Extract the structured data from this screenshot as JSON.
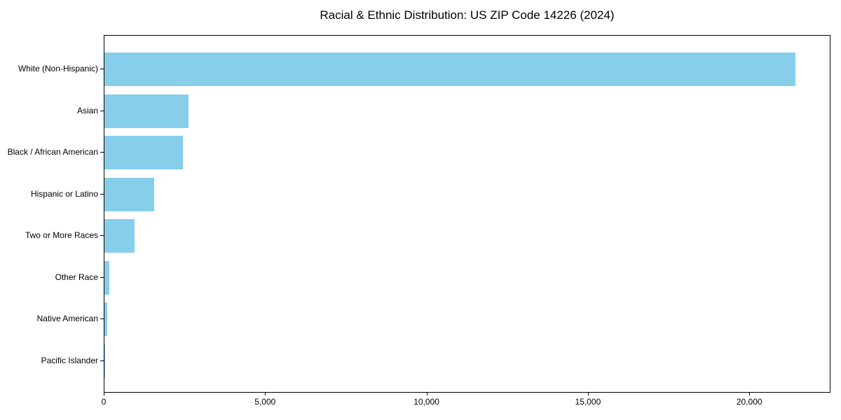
{
  "chart_data": {
    "type": "bar",
    "orientation": "horizontal",
    "title": "Racial & Ethnic Distribution: US ZIP Code 14226 (2024)",
    "categories": [
      "White (Non-Hispanic)",
      "Asian",
      "Black / African American",
      "Hispanic or Latino",
      "Two or More Races",
      "Other Race",
      "Native American",
      "Pacific Islander"
    ],
    "values": [
      21400,
      2600,
      2440,
      1545,
      925,
      150,
      85,
      10
    ],
    "xlabel": "",
    "ylabel": "",
    "xlim": [
      0,
      22470
    ],
    "xticks": [
      0,
      5000,
      10000,
      15000,
      20000
    ],
    "xtick_labels": [
      "0",
      "5,000",
      "10,000",
      "15,000",
      "20,000"
    ],
    "bar_color": "#87CEEB",
    "axis_color": "#000000",
    "background_color": "#ffffff",
    "grid": false,
    "legend": "none"
  }
}
